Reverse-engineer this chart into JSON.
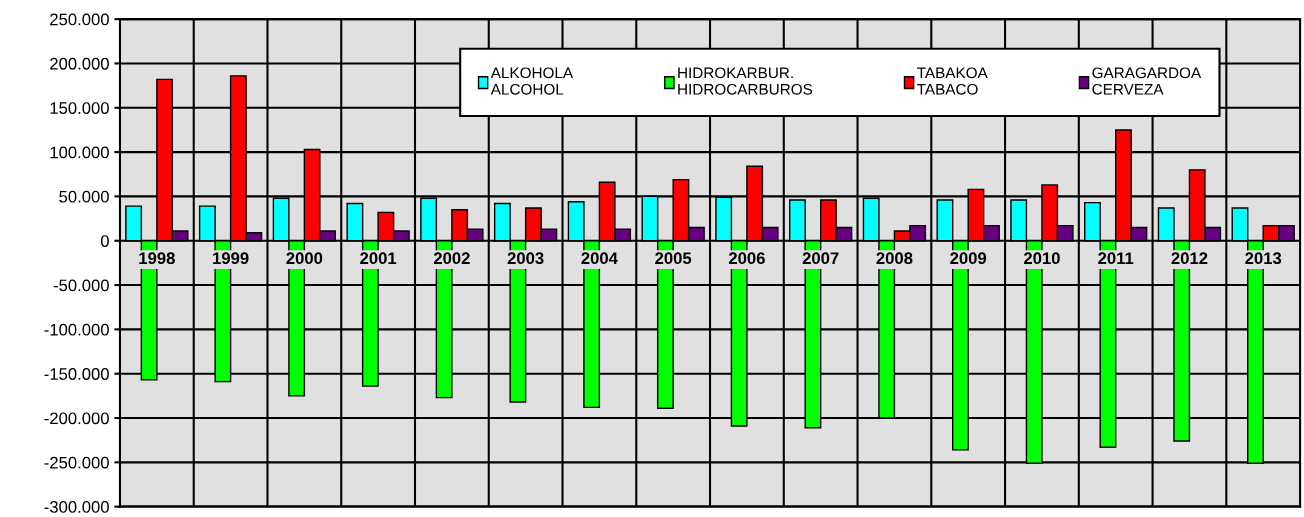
{
  "chart_data": {
    "type": "bar",
    "categories": [
      "1998",
      "1999",
      "2000",
      "2001",
      "2002",
      "2003",
      "2004",
      "2005",
      "2006",
      "2007",
      "2008",
      "2009",
      "2010",
      "2011",
      "2012",
      "2013"
    ],
    "series": [
      {
        "name": "ALKOHOLA\nALCOHOL",
        "color": "#00ffff",
        "values": [
          39000,
          39000,
          48000,
          42000,
          48000,
          42000,
          44000,
          50000,
          49000,
          46000,
          48000,
          46000,
          46000,
          43000,
          37000,
          37000
        ]
      },
      {
        "name": "HIDROKARBUR.\nHIDROCARBUROS",
        "color": "#00ff00",
        "values": [
          -157000,
          -159000,
          -175000,
          -164000,
          -177000,
          -182000,
          -188000,
          -189000,
          -209000,
          -211000,
          -200000,
          -236000,
          -251000,
          -233000,
          -226000,
          -251000
        ]
      },
      {
        "name": "TABAKOA\nTABACO",
        "color": "#ff0000",
        "values": [
          182000,
          186000,
          103000,
          32000,
          35000,
          37000,
          66000,
          69000,
          84000,
          46000,
          11000,
          58000,
          63000,
          125000,
          80000,
          17000
        ]
      },
      {
        "name": "GARAGARDOA\nCERVEZA",
        "color": "#660080",
        "values": [
          11000,
          9000,
          11000,
          11000,
          13000,
          13000,
          13000,
          15000,
          15000,
          15000,
          17000,
          17000,
          17000,
          15000,
          15000,
          17000
        ]
      }
    ],
    "ylim": [
      -300000,
      250000
    ],
    "yticks": [
      {
        "value": -300000,
        "label": "-300.000"
      },
      {
        "value": -250000,
        "label": "-250.000"
      },
      {
        "value": -200000,
        "label": "-200.000"
      },
      {
        "value": -150000,
        "label": "-150.000"
      },
      {
        "value": -100000,
        "label": "-100.000"
      },
      {
        "value": -50000,
        "label": "-50.000"
      },
      {
        "value": 0,
        "label": "0"
      },
      {
        "value": 50000,
        "label": "50.000"
      },
      {
        "value": 100000,
        "label": "100.000"
      },
      {
        "value": 150000,
        "label": "150.000"
      },
      {
        "value": 200000,
        "label": "200.000"
      },
      {
        "value": 250000,
        "label": "250.000"
      }
    ],
    "grid": true,
    "legend": "top"
  }
}
